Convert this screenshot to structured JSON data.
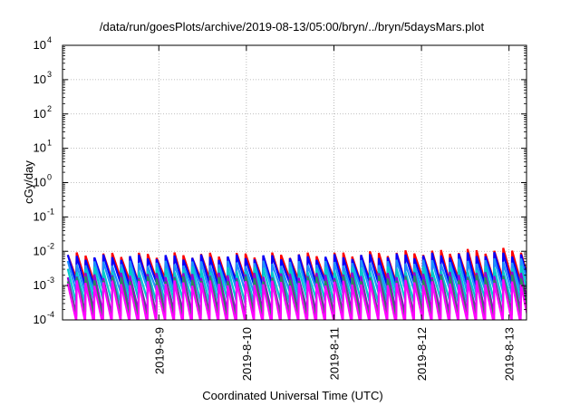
{
  "chart_data": {
    "type": "line",
    "title": "/data/run/goesPlots/archive/2019-08-13/05:00/bryn/../bryn/5daysMars.plot",
    "xlabel": "Coordinated Universal Time (UTC)",
    "ylabel": "cGy/day",
    "yscale": "log",
    "ylim": [
      0.0001,
      10000
    ],
    "xlim_days": [
      -1.1,
      4.2
    ],
    "x_ticks": [
      {
        "label": "2019-8-9",
        "day": 0
      },
      {
        "label": "2019-8-10",
        "day": 1
      },
      {
        "label": "2019-8-11",
        "day": 2
      },
      {
        "label": "2019-8-12",
        "day": 3
      },
      {
        "label": "2019-8-13",
        "day": 4
      }
    ],
    "y_ticks": [
      {
        "base": "10",
        "exp": "-4",
        "value": 0.0001
      },
      {
        "base": "10",
        "exp": "-3",
        "value": 0.001
      },
      {
        "base": "10",
        "exp": "-2",
        "value": 0.01
      },
      {
        "base": "10",
        "exp": "-1",
        "value": 0.1
      },
      {
        "base": "10",
        "exp": "0",
        "value": 1
      },
      {
        "base": "10",
        "exp": "1",
        "value": 10
      },
      {
        "base": "10",
        "exp": "2",
        "value": 100
      },
      {
        "base": "10",
        "exp": "3",
        "value": 1000
      },
      {
        "base": "10",
        "exp": "4",
        "value": 10000
      }
    ],
    "grid": true,
    "sawtooth_period_days": 0.1015,
    "sawtooth_phase_days": -1.04,
    "series": [
      {
        "color": "#ff0000",
        "peak": 0.0078,
        "trough": 0.0014,
        "peak_end": 0.011
      },
      {
        "color": "#0000ff",
        "peak": 0.0068,
        "trough": 0.0011,
        "peak_end": 0.0085
      },
      {
        "color": "#1e90ff",
        "peak": 0.0045,
        "trough": 0.0007,
        "peak_end": 0.0055
      },
      {
        "color": "#00cccc",
        "peak": 0.003,
        "trough": 0.00035,
        "peak_end": 0.0032
      },
      {
        "color": "#9400d3",
        "peak": 0.002,
        "trough": 0.00016,
        "peak_end": 0.0022
      },
      {
        "color": "#2e8b57",
        "peak": 0.0016,
        "trough": 0.00012,
        "peak_end": 0.0018
      },
      {
        "color": "#ff00ff",
        "peak": 0.0012,
        "trough": 8e-05,
        "peak_end": 0.0013
      }
    ]
  }
}
